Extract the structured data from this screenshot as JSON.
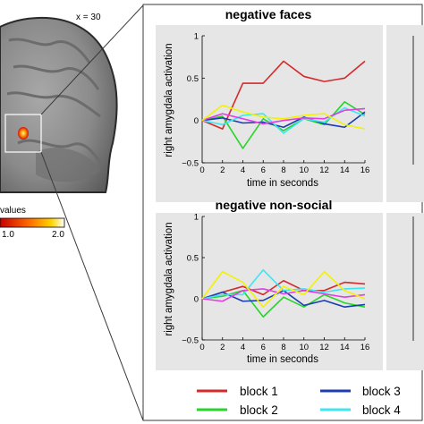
{
  "brain": {
    "coordinate": "x = 30",
    "scale_label": "values",
    "scale_ticks": [
      "1.0",
      "2.0"
    ]
  },
  "colors": {
    "block1": "#d42a2a",
    "block2": "#27d42a",
    "block3": "#1c3cb4",
    "block4": "#3ce6f2",
    "magenta": "#e33de3",
    "yellow": "#f2f200",
    "panel_bg": "#e6e6e6"
  },
  "legend": [
    {
      "label": "block 1",
      "color": "#d42a2a"
    },
    {
      "label": "block 2",
      "color": "#27d42a"
    },
    {
      "label": "block 3",
      "color": "#1c3cb4"
    },
    {
      "label": "block 4",
      "color": "#3ce6f2"
    }
  ],
  "chart_data": [
    {
      "type": "line",
      "title": "negative faces",
      "xlabel": "time in seconds",
      "ylabel": "right amygdala activation",
      "xlim": [
        0,
        16
      ],
      "ylim": [
        -0.5,
        1
      ],
      "xticks": [
        "0",
        "2",
        "4",
        "6",
        "8",
        "10",
        "12",
        "14",
        "16"
      ],
      "yticks": [
        "−0.5",
        "0",
        "0.5",
        "1"
      ],
      "grid": false,
      "x": [
        0,
        2,
        4,
        6,
        8,
        10,
        12,
        14,
        16
      ],
      "series": [
        {
          "name": "block 1",
          "color": "#d42a2a",
          "values": [
            0,
            -0.1,
            0.44,
            0.44,
            0.7,
            0.52,
            0.46,
            0.5,
            0.7
          ]
        },
        {
          "name": "block 2",
          "color": "#27d42a",
          "values": [
            0,
            0.05,
            -0.33,
            0.02,
            -0.12,
            0.02,
            -0.05,
            0.22,
            0.07
          ]
        },
        {
          "name": "block 3",
          "color": "#1c3cb4",
          "values": [
            0,
            0.03,
            -0.03,
            -0.02,
            -0.08,
            0.04,
            -0.04,
            -0.08,
            0.1
          ]
        },
        {
          "name": "block 4",
          "color": "#3ce6f2",
          "values": [
            0,
            -0.05,
            0.06,
            0.08,
            -0.15,
            0.02,
            -0.02,
            0.15,
            0.05
          ]
        },
        {
          "color": "#e33de3",
          "values": [
            0,
            0.08,
            0.02,
            -0.04,
            0.0,
            0.03,
            0.02,
            0.12,
            0.14
          ]
        },
        {
          "color": "#f2f200",
          "values": [
            0,
            0.18,
            0.1,
            0.04,
            0.02,
            0.06,
            0.08,
            -0.05,
            -0.1
          ]
        }
      ]
    },
    {
      "type": "line",
      "title": "negative non-social",
      "xlabel": "time in seconds",
      "ylabel": "right amygdala activation",
      "xlim": [
        0,
        16
      ],
      "ylim": [
        -0.5,
        1
      ],
      "xticks": [
        "0",
        "2",
        "4",
        "6",
        "8",
        "10",
        "12",
        "14",
        "16"
      ],
      "yticks": [
        "−0.5",
        "0",
        "0.5",
        "1"
      ],
      "grid": false,
      "x": [
        0,
        2,
        4,
        6,
        8,
        10,
        12,
        14,
        16
      ],
      "series": [
        {
          "name": "block 1",
          "color": "#d42a2a",
          "values": [
            0,
            0.08,
            0.15,
            0.05,
            0.22,
            0.1,
            0.1,
            0.2,
            0.18
          ]
        },
        {
          "name": "block 2",
          "color": "#27d42a",
          "values": [
            0,
            0.03,
            0.1,
            -0.22,
            0.02,
            -0.1,
            0.05,
            -0.05,
            -0.1
          ]
        },
        {
          "name": "block 3",
          "color": "#1c3cb4",
          "values": [
            0,
            0.08,
            -0.03,
            -0.02,
            0.1,
            -0.08,
            -0.02,
            -0.1,
            -0.07
          ]
        },
        {
          "name": "block 4",
          "color": "#3ce6f2",
          "values": [
            0,
            0.05,
            0.05,
            0.35,
            0.1,
            0.12,
            0.08,
            0.12,
            0.13
          ]
        },
        {
          "color": "#e33de3",
          "values": [
            0,
            -0.03,
            0.1,
            0.12,
            0.06,
            0.1,
            0.06,
            0.02,
            0.05
          ]
        },
        {
          "color": "#f2f200",
          "values": [
            0,
            0.33,
            0.2,
            -0.1,
            0.15,
            0.05,
            0.33,
            0.1,
            0.0
          ]
        }
      ]
    }
  ]
}
